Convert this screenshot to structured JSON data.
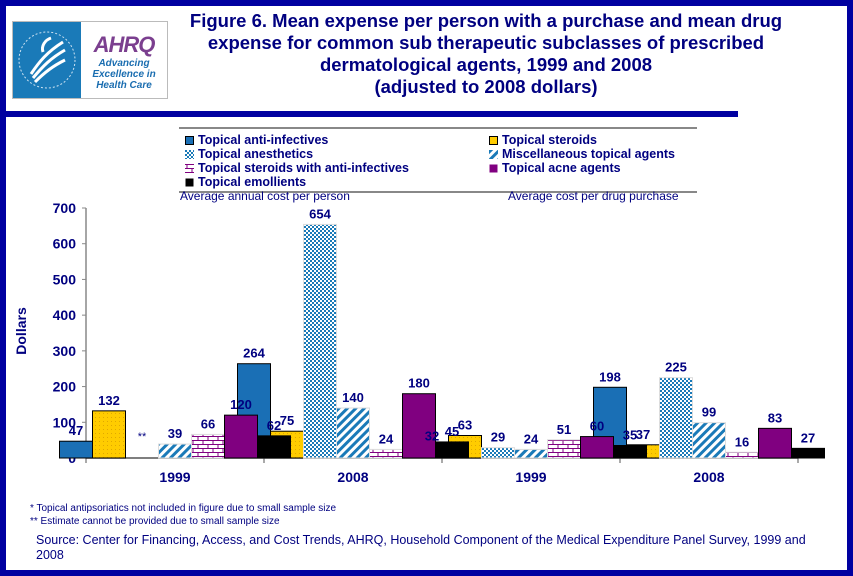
{
  "title": "Figure 6. Mean expense per person with a purchase and mean drug\nexpense for common sub therapeutic subclasses of prescribed\ndermatological agents, 1999 and 2008\n(adjusted to 2008 dollars)",
  "logo": {
    "brand": "AHRQ",
    "tagline": [
      "Advancing",
      "Excellence in",
      "Health Care"
    ]
  },
  "colors": {
    "frame": "#0000a0",
    "text": "#000080",
    "anti_infectives": "#1a6fb5",
    "steroids": "#ffcc00",
    "anesthetics": "#1a7ab8",
    "misc": "#1a7ab8",
    "steroids_anti": "#800080",
    "acne": "#800080",
    "emollients": "#000000"
  },
  "footnotes": [
    "* Topical antipsoriatics not included in figure due to small sample size",
    "** Estimate  cannot be provided due to small sample size"
  ],
  "source": "Source: Center for Financing, Access, and Cost Trends, AHRQ, Household Component of the Medical Expenditure Panel Survey, 1999 and 2008",
  "chart_data": {
    "type": "bar",
    "title": "Figure 6. Mean expense per person with a purchase and mean drug expense for common sub therapeutic subclasses of prescribed dermatological agents, 1999 and 2008 (adjusted to 2008 dollars)",
    "ylabel": "Dollars",
    "ylim": [
      0,
      700
    ],
    "yticks": [
      0,
      100,
      200,
      300,
      400,
      500,
      600,
      700
    ],
    "grid": false,
    "legend_position": "top",
    "panels": [
      "Average annual cost per person",
      "Average cost per drug purchase"
    ],
    "categories": [
      "1999",
      "2008",
      "1999",
      "2008"
    ],
    "series": [
      {
        "name": "Topical anti-infectives",
        "pattern": "solid-blue",
        "values": [
          47,
          264,
          32,
          198
        ],
        "labels": [
          "47",
          "264",
          "32",
          "198"
        ]
      },
      {
        "name": "Topical steroids",
        "pattern": "yellow-dots",
        "values": [
          132,
          75,
          63,
          37
        ],
        "labels": [
          "132",
          "75",
          "63",
          "37"
        ]
      },
      {
        "name": "Topical anesthetics",
        "pattern": "blue-checker",
        "values": [
          null,
          654,
          29,
          225
        ],
        "labels": [
          "**",
          "654",
          "29",
          "225"
        ]
      },
      {
        "name": "Miscellaneous topical agents",
        "pattern": "blue-diagonal",
        "values": [
          39,
          140,
          24,
          99
        ],
        "labels": [
          "39",
          "140",
          "24",
          "99"
        ]
      },
      {
        "name": "Topical steroids with anti-infectives",
        "pattern": "purple-brick",
        "values": [
          66,
          24,
          51,
          16
        ],
        "labels": [
          "66",
          "24",
          "51",
          "16"
        ]
      },
      {
        "name": "Topical acne agents",
        "pattern": "solid-purple",
        "values": [
          120,
          180,
          60,
          83
        ],
        "labels": [
          "120",
          "180",
          "60",
          "83"
        ]
      },
      {
        "name": "Topical emollients",
        "pattern": "solid-black",
        "values": [
          62,
          45,
          35,
          27
        ],
        "labels": [
          "62",
          "45",
          "35",
          "27"
        ]
      }
    ]
  }
}
